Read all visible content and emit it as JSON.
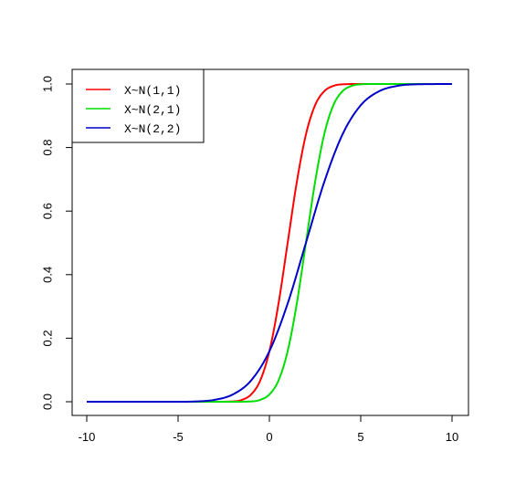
{
  "chart_data": {
    "type": "line",
    "title": "",
    "xlabel": "",
    "ylabel": "",
    "xlim": [
      -10,
      10
    ],
    "ylim": [
      0,
      1
    ],
    "x_ticks": [
      -10,
      -5,
      0,
      5,
      10
    ],
    "y_ticks": [
      0.0,
      0.2,
      0.4,
      0.6,
      0.8,
      1.0
    ],
    "x_tick_labels": [
      "-10",
      "-5",
      "0",
      "5",
      "10"
    ],
    "y_tick_labels": [
      "0.0",
      "0.2",
      "0.4",
      "0.6",
      "0.8",
      "1.0"
    ],
    "grid": false,
    "legend_position": "top-left",
    "series": [
      {
        "name": "X~N(1,1)",
        "color": "#ff0000",
        "x": [
          -10,
          -4,
          -3,
          -2,
          -1.5,
          -1,
          -0.5,
          0,
          0.5,
          1,
          1.5,
          2,
          2.5,
          3,
          3.5,
          4,
          5,
          6,
          10
        ],
        "values": [
          0.0,
          0.0,
          0.0,
          0.001,
          0.006,
          0.023,
          0.067,
          0.159,
          0.309,
          0.5,
          0.691,
          0.841,
          0.933,
          0.977,
          0.994,
          0.999,
          1.0,
          1.0,
          1.0
        ]
      },
      {
        "name": "X~N(2,1)",
        "color": "#00dd00",
        "x": [
          -10,
          -3,
          -2,
          -1,
          -0.5,
          0,
          0.5,
          1,
          1.5,
          2,
          2.5,
          3,
          3.5,
          4,
          4.5,
          5,
          6,
          7,
          10
        ],
        "values": [
          0.0,
          0.0,
          0.0,
          0.001,
          0.006,
          0.023,
          0.067,
          0.159,
          0.309,
          0.5,
          0.691,
          0.841,
          0.933,
          0.977,
          0.994,
          0.999,
          1.0,
          1.0,
          1.0
        ]
      },
      {
        "name": "X~N(2,2)",
        "color": "#0000cc",
        "x": [
          -10,
          -5,
          -4,
          -3,
          -2,
          -1,
          0,
          1,
          2,
          3,
          4,
          5,
          6,
          7,
          8,
          10
        ],
        "values": [
          0.0,
          0.0,
          0.001,
          0.006,
          0.023,
          0.067,
          0.159,
          0.309,
          0.5,
          0.691,
          0.841,
          0.933,
          0.977,
          0.994,
          0.999,
          1.0
        ]
      }
    ]
  }
}
